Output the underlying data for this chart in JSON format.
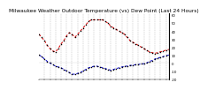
{
  "title": "Milwaukee Weather Outdoor Temperature (vs) Dew Point (Last 24 Hours)",
  "title_fontsize": 4.2,
  "bg_color": "#ffffff",
  "plot_bg": "#ffffff",
  "grid_color": "#999999",
  "red_line_color": "#dd0000",
  "blue_line_color": "#0000cc",
  "black_dot_color": "#000000",
  "ylim": [
    -20,
    62
  ],
  "xlim": [
    0,
    47
  ],
  "temp_x": [
    0,
    1,
    2,
    3,
    4,
    5,
    6,
    7,
    8,
    9,
    10,
    11,
    12,
    13,
    14,
    15,
    16,
    17,
    18,
    19,
    20,
    21,
    22,
    23,
    24,
    25,
    26,
    27,
    28,
    29,
    30,
    31,
    32,
    33,
    34,
    35,
    36,
    37,
    38,
    39,
    40,
    41,
    42,
    43,
    44,
    45,
    46,
    47
  ],
  "temp_y": [
    36,
    32,
    28,
    22,
    18,
    15,
    14,
    18,
    24,
    28,
    34,
    38,
    36,
    32,
    36,
    40,
    44,
    48,
    52,
    54,
    54,
    54,
    54,
    54,
    52,
    50,
    46,
    44,
    42,
    40,
    38,
    36,
    32,
    28,
    26,
    24,
    22,
    20,
    18,
    16,
    14,
    13,
    12,
    13,
    14,
    15,
    16,
    17
  ],
  "dew_x": [
    0,
    1,
    2,
    3,
    4,
    5,
    6,
    7,
    8,
    9,
    10,
    11,
    12,
    13,
    14,
    15,
    16,
    17,
    18,
    19,
    20,
    21,
    22,
    23,
    24,
    25,
    26,
    27,
    28,
    29,
    30,
    31,
    32,
    33,
    34,
    35,
    36,
    37,
    38,
    39,
    40,
    41,
    42,
    43,
    44,
    45,
    46,
    47
  ],
  "dew_y": [
    10,
    8,
    5,
    2,
    0,
    -2,
    -4,
    -5,
    -6,
    -8,
    -10,
    -12,
    -14,
    -14,
    -13,
    -12,
    -10,
    -8,
    -6,
    -5,
    -4,
    -4,
    -5,
    -6,
    -7,
    -8,
    -9,
    -8,
    -7,
    -6,
    -5,
    -4,
    -4,
    -3,
    -3,
    -2,
    -2,
    -1,
    -1,
    0,
    2,
    3,
    5,
    6,
    7,
    8,
    9,
    10
  ],
  "vline_positions": [
    2,
    4,
    6,
    8,
    10,
    12,
    14,
    16,
    18,
    20,
    22,
    24,
    26,
    28,
    30,
    32,
    34,
    36,
    38,
    40,
    42,
    44,
    46
  ],
  "ytick_values": [
    60,
    50,
    40,
    30,
    20,
    10,
    0,
    -10,
    -20
  ],
  "ytick_fontsize": 2.8,
  "xtick_fontsize": 2.0
}
